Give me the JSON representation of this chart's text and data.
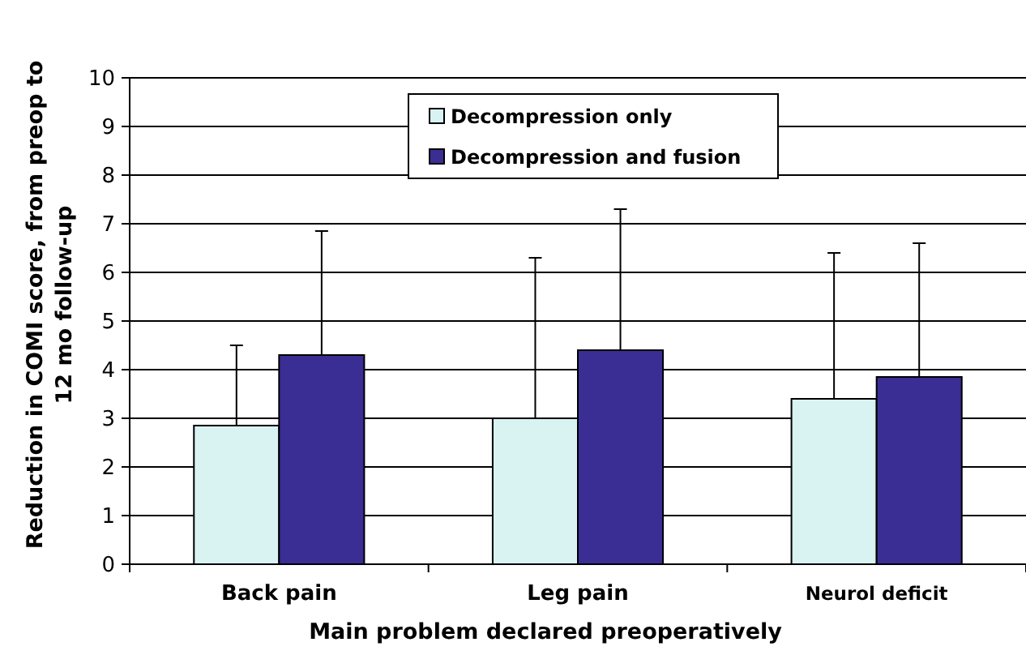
{
  "chart_data": {
    "type": "bar",
    "xlabel": "Main problem declared preoperatively",
    "ylabel": "Reduction in COMI score, from preop to\n12 mo follow-up",
    "categories": [
      "Back pain",
      "Leg pain",
      "Neurol deficit"
    ],
    "series": [
      {
        "name": "Decompression only",
        "color": "#d9f2f2",
        "values": [
          2.85,
          3.0,
          3.4
        ],
        "errors": [
          [
            2.85,
            4.5
          ],
          [
            3.0,
            6.3
          ],
          [
            3.4,
            6.4
          ]
        ]
      },
      {
        "name": "Decompression and fusion",
        "color": "#3a2e94",
        "values": [
          4.3,
          4.4,
          3.85
        ],
        "errors": [
          [
            4.3,
            6.85
          ],
          [
            4.4,
            7.3
          ],
          [
            3.85,
            6.6
          ]
        ]
      }
    ],
    "ylim": [
      0,
      10
    ],
    "yticks": [
      0,
      1,
      2,
      3,
      4,
      5,
      6,
      7,
      8,
      9,
      10
    ],
    "grid": "y",
    "legend": "top"
  }
}
